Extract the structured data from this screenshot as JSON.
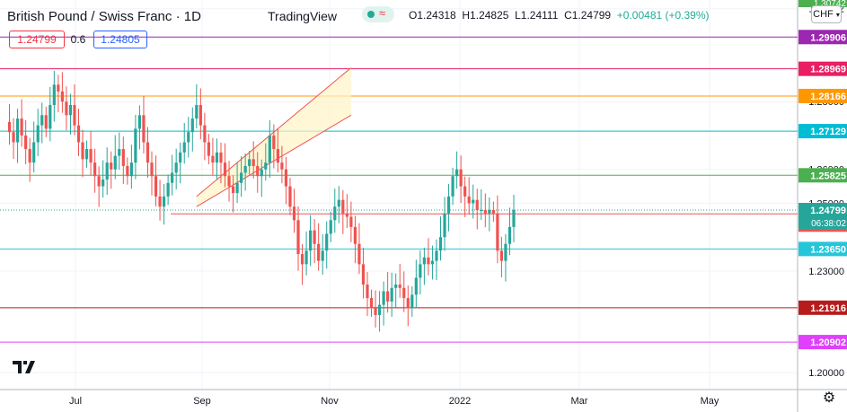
{
  "header": {
    "symbol_title": "British Pound / Swiss Franc · 1D",
    "brand": "TradingView",
    "ohlc": {
      "o": "O1.24318",
      "h": "H1.24825",
      "l": "L1.24111",
      "c": "C1.24799",
      "chg": "+0.00481 (+0.39%)"
    },
    "bid": "1.24799",
    "spread": "0.6",
    "ask": "1.24805",
    "currency": "CHF"
  },
  "colors": {
    "up": "#26a69a",
    "down": "#ef5350",
    "grid": "#f0f3fa",
    "text": "#131722"
  },
  "chart_data": {
    "type": "candlestick",
    "title": "British Pound / Swiss Franc · 1D",
    "x_ticks": [
      "Jul",
      "Sep",
      "Nov",
      "2022",
      "Mar",
      "May"
    ],
    "y_ticks": [
      "1.20000",
      "1.23000",
      "1.25000",
      "1.26000",
      "1.28000",
      "1.30742"
    ],
    "ylim": [
      1.195,
      1.31
    ],
    "horizontal_levels": [
      {
        "label": "1.29906",
        "value": 1.29906,
        "color": "#9c27b0"
      },
      {
        "label": "1.28969",
        "value": 1.28969,
        "color": "#e91e63"
      },
      {
        "label": "1.28166",
        "value": 1.28166,
        "color": "#ff9800"
      },
      {
        "label": "1.27129",
        "value": 1.27129,
        "color": "#00bcd4"
      },
      {
        "label": "1.25825",
        "value": 1.25825,
        "color": "#4caf50"
      },
      {
        "label": "1.24799",
        "value": 1.24799,
        "color": "#26a69a"
      },
      {
        "label": "1.24687",
        "value": 1.24687,
        "color": "#ef5350"
      },
      {
        "label": "1.23650",
        "value": 1.2365,
        "color": "#26c6da"
      },
      {
        "label": "1.21916",
        "value": 1.21916,
        "color": "#b71c1c"
      },
      {
        "label": "1.20902",
        "value": 1.20902,
        "color": "#e040fb"
      }
    ],
    "countdown": "06:38:02",
    "top_partial_label": "1.30742",
    "path": [
      1.274,
      1.271,
      1.268,
      1.275,
      1.27,
      1.266,
      1.262,
      1.268,
      1.273,
      1.276,
      1.272,
      1.279,
      1.285,
      1.283,
      1.28,
      1.276,
      1.279,
      1.273,
      1.268,
      1.263,
      1.266,
      1.262,
      1.258,
      1.255,
      1.257,
      1.262,
      1.26,
      1.264,
      1.266,
      1.261,
      1.258,
      1.262,
      1.272,
      1.276,
      1.268,
      1.262,
      1.258,
      1.252,
      1.249,
      1.252,
      1.256,
      1.259,
      1.262,
      1.265,
      1.268,
      1.271,
      1.275,
      1.279,
      1.273,
      1.268,
      1.264,
      1.262,
      1.265,
      1.262,
      1.258,
      1.255,
      1.253,
      1.256,
      1.259,
      1.261,
      1.263,
      1.261,
      1.258,
      1.26,
      1.262,
      1.27,
      1.266,
      1.262,
      1.26,
      1.255,
      1.249,
      1.245,
      1.235,
      1.232,
      1.236,
      1.242,
      1.238,
      1.233,
      1.236,
      1.241,
      1.245,
      1.249,
      1.251,
      1.247,
      1.246,
      1.243,
      1.238,
      1.232,
      1.226,
      1.222,
      1.219,
      1.217,
      1.22,
      1.224,
      1.221,
      1.225,
      1.226,
      1.225,
      1.222,
      1.219,
      1.223,
      1.228,
      1.232,
      1.234,
      1.232,
      1.233,
      1.236,
      1.24,
      1.247,
      1.252,
      1.258,
      1.26,
      1.255,
      1.252,
      1.25,
      1.251,
      1.248,
      1.248,
      1.247,
      1.248,
      1.247,
      1.236,
      1.233,
      1.238,
      1.243,
      1.248
    ],
    "channel": {
      "lower": [
        [
          47,
          1.249
        ],
        [
          85,
          1.276
        ]
      ],
      "upper": [
        [
          47,
          1.252
        ],
        [
          85,
          1.29
        ]
      ]
    },
    "baseline_start_index": 47
  }
}
